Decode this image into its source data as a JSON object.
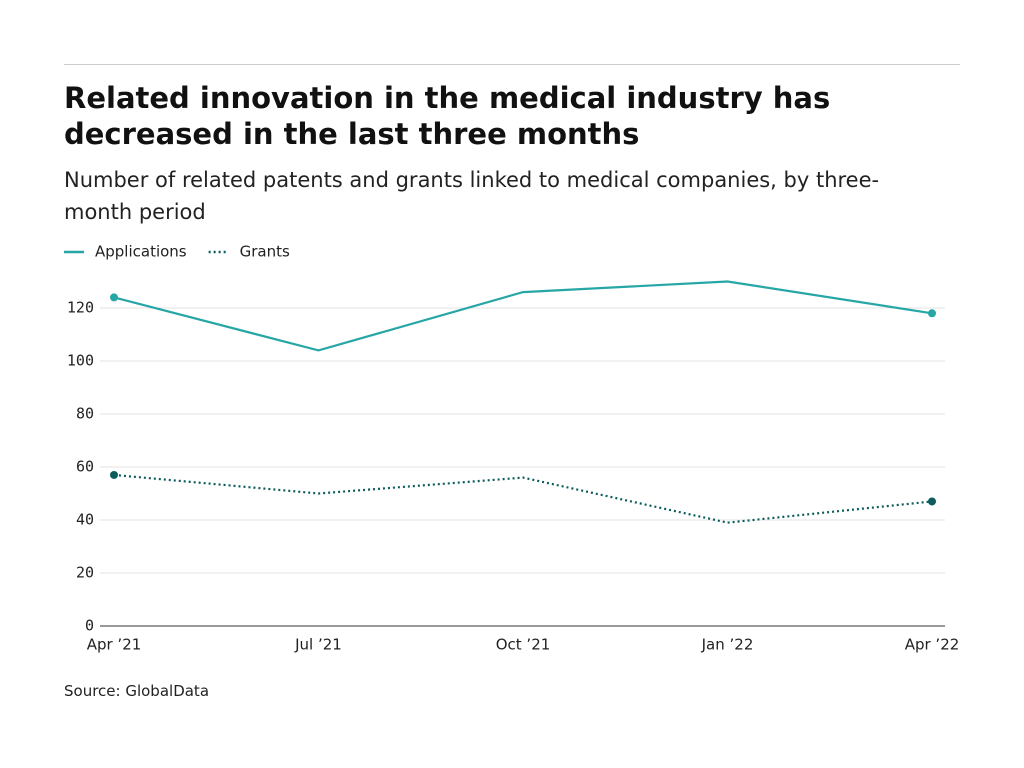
{
  "chart_data": {
    "type": "line",
    "title": "Related innovation in the medical industry has decreased in the last three months",
    "subtitle": "Number of related patents and grants linked to medical companies, by three-month period",
    "source": "Source: GlobalData",
    "categories": [
      "Apr ’21",
      "Jul ’21",
      "Oct ’21",
      "Jan ’22",
      "Apr ’22"
    ],
    "series": [
      {
        "name": "Applications",
        "color": "#27a6a6",
        "style": "solid",
        "values": [
          124,
          104,
          126,
          130,
          118
        ]
      },
      {
        "name": "Grants",
        "color": "#0b5c5c",
        "style": "dotted",
        "values": [
          57,
          50,
          56,
          39,
          47
        ]
      }
    ],
    "ylim": [
      0,
      130
    ],
    "yticks": [
      0,
      20,
      40,
      60,
      80,
      100,
      120
    ],
    "grid": true,
    "legend": "top-left"
  }
}
